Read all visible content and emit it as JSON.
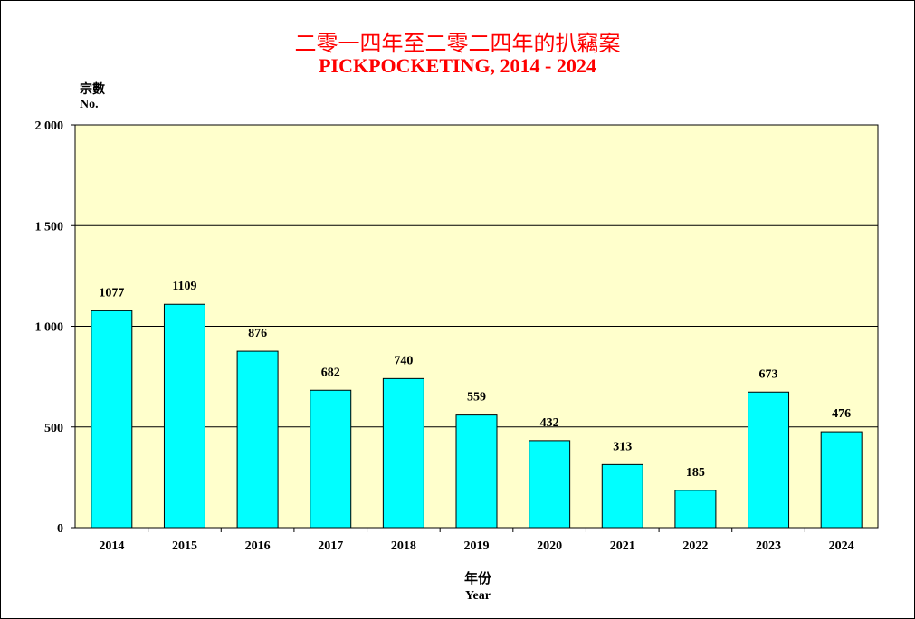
{
  "chart_data": {
    "type": "bar",
    "title_zh": "二零一四年至二零二四年的扒竊案",
    "title": "PICKPOCKETING, 2014 - 2024",
    "ylabel_zh": "宗數",
    "ylabel": "No.",
    "xlabel_zh": "年份",
    "xlabel": "Year",
    "categories": [
      "2014",
      "2015",
      "2016",
      "2017",
      "2018",
      "2019",
      "2020",
      "2021",
      "2022",
      "2023",
      "2024"
    ],
    "values": [
      1077,
      1109,
      876,
      682,
      740,
      559,
      432,
      313,
      185,
      673,
      476
    ],
    "ylim": [
      0,
      2000
    ],
    "yticks": [
      0,
      500,
      1000,
      1500,
      2000
    ],
    "ytick_labels": [
      "0",
      "500",
      "1 000",
      "1 500",
      "2 000"
    ],
    "grid": true,
    "bar_color": "#00ffff",
    "plot_bg": "#ffffcc",
    "title_color": "#ff0000"
  }
}
